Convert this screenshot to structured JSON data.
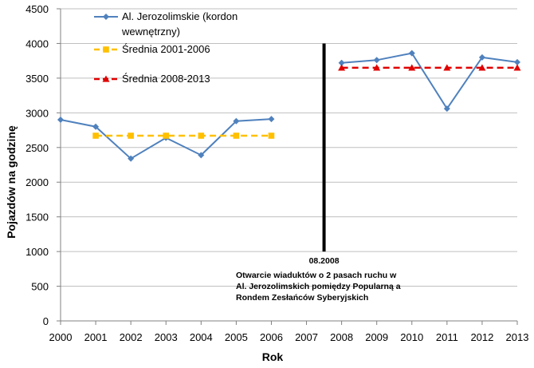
{
  "chart_data": {
    "type": "line",
    "xlabel": "Rok",
    "ylabel": "Pojazdów na godzinę",
    "ylim": [
      0,
      4500
    ],
    "xlim": [
      2000,
      2013
    ],
    "yticks": [
      0,
      500,
      1000,
      1500,
      2000,
      2500,
      3000,
      3500,
      4000,
      4500
    ],
    "xticks": [
      2000,
      2001,
      2002,
      2003,
      2004,
      2005,
      2006,
      2007,
      2008,
      2009,
      2010,
      2011,
      2012,
      2013
    ],
    "grid": "horizontal",
    "legend": {
      "placement": "top-left"
    },
    "series": [
      {
        "name": "Al. Jerozolimskie (kordon wewnętrzny)",
        "legend_lines": [
          "Al. Jerozolimskie (kordon",
          "wewnętrzny)"
        ],
        "color": "#4F81BD",
        "marker": "diamond",
        "style": "solid",
        "segments": [
          {
            "x": [
              2000,
              2001,
              2002,
              2003,
              2004,
              2005,
              2006
            ],
            "y": [
              2900,
              2800,
              2340,
              2640,
              2390,
              2880,
              2910
            ]
          },
          {
            "x": [
              2008,
              2009,
              2010,
              2011,
              2012,
              2013
            ],
            "y": [
              3720,
              3760,
              3860,
              3060,
              3800,
              3730
            ]
          }
        ]
      },
      {
        "name": "Średnia 2001-2006",
        "legend_lines": [
          "Średnia 2001-2006"
        ],
        "color": "#FFC000",
        "marker": "square",
        "style": "dashed",
        "segments": [
          {
            "x": [
              2001,
              2002,
              2003,
              2004,
              2005,
              2006
            ],
            "y": [
              2670,
              2670,
              2670,
              2670,
              2670,
              2670
            ]
          }
        ]
      },
      {
        "name": "Średnia 2008-2013",
        "legend_lines": [
          "Średnia 2008-2013"
        ],
        "color": "#E00000",
        "marker": "triangle",
        "style": "dashed",
        "segments": [
          {
            "x": [
              2008,
              2009,
              2010,
              2011,
              2012,
              2013
            ],
            "y": [
              3650,
              3650,
              3650,
              3650,
              3650,
              3650
            ]
          }
        ]
      }
    ],
    "event_marker": {
      "x": 2007.5,
      "y_top": 4000,
      "y_bottom": 1000,
      "color": "#000000",
      "label": "08.2008",
      "annotation_lines": [
        "Otwarcie wiaduktów o 2 pasach ruchu w",
        "Al. Jerozolimskich pomiędzy Popularną a",
        "Rondem Zesłańców Syberyjskich"
      ]
    }
  }
}
